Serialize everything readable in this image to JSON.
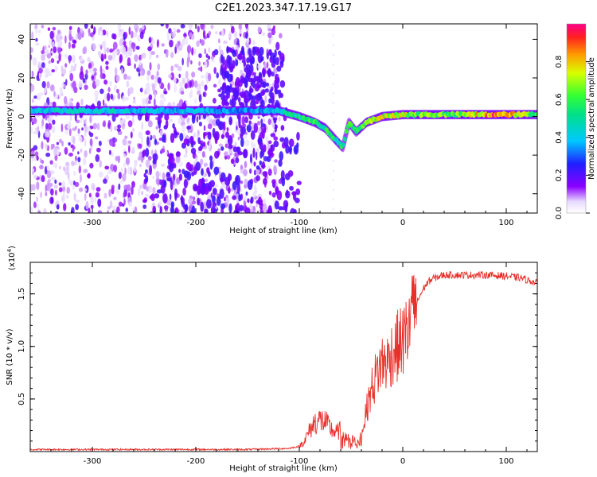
{
  "figure_title": "C2E1.2023.347.17.19.G17",
  "colors": {
    "snr_line": "#e8302a",
    "spectrogram_low": "#d6c6f7",
    "spectrogram_mid": "#5a00e6",
    "spectrogram_high": "#e8302a"
  },
  "chart_data": [
    {
      "type": "heatmap",
      "title": "",
      "xlabel": "Height of straight line (km)",
      "ylabel": "Frequency (Hz)",
      "xlim": [
        -360,
        130
      ],
      "ylim": [
        -50,
        48
      ],
      "x_ticks": [
        -300,
        -200,
        -100,
        0,
        100
      ],
      "y_ticks": [
        -40,
        -20,
        0,
        20,
        40
      ],
      "colorbar": {
        "label": "Normalized spectral amplitude",
        "range": [
          0,
          1
        ],
        "ticks": [
          "0.0",
          "0.2",
          "0.4",
          "0.6",
          "0.8"
        ],
        "colormap": "rainbow"
      },
      "ridge": {
        "description_points_km_hz": [
          [
            -355,
            3
          ],
          [
            -300,
            3
          ],
          [
            -250,
            3
          ],
          [
            -200,
            3
          ],
          [
            -150,
            3
          ],
          [
            -120,
            3
          ],
          [
            -100,
            0
          ],
          [
            -85,
            -3
          ],
          [
            -75,
            -6
          ],
          [
            -65,
            -12
          ],
          [
            -58,
            -16
          ],
          [
            -52,
            -3
          ],
          [
            -45,
            -8
          ],
          [
            -35,
            -3
          ],
          [
            -20,
            0
          ],
          [
            0,
            1
          ],
          [
            40,
            1
          ],
          [
            80,
            1
          ],
          [
            100,
            1
          ],
          [
            130,
            1
          ]
        ],
        "amplitude_points_km": [
          [
            -355,
            0.45
          ],
          [
            -250,
            0.45
          ],
          [
            -150,
            0.35
          ],
          [
            -120,
            0.45
          ],
          [
            -90,
            0.6
          ],
          [
            -60,
            0.55
          ],
          [
            -30,
            0.75
          ],
          [
            0,
            0.75
          ],
          [
            50,
            0.65
          ],
          [
            80,
            0.9
          ],
          [
            100,
            0.95
          ],
          [
            130,
            0.6
          ]
        ]
      },
      "noise_region_km": [
        -360,
        -118
      ]
    },
    {
      "type": "line",
      "title": "",
      "xlabel": "Height of straight line (km)",
      "ylabel": "SNR (10 * v/v)",
      "y_multiplier_label": "(x10",
      "y_multiplier_exp": "4",
      "y_multiplier_close": ")",
      "xlim": [
        -360,
        130
      ],
      "ylim": [
        0,
        1.8
      ],
      "x_ticks": [
        -300,
        -200,
        -100,
        0,
        100
      ],
      "y_ticks": [
        0.5,
        1.0,
        1.5
      ],
      "series": [
        {
          "values_x_km": [
            -360,
            -300,
            -250,
            -200,
            -150,
            -110,
            -100,
            -95,
            -90,
            -85,
            -80,
            -75,
            -70,
            -65,
            -60,
            -55,
            -50,
            -45,
            -40,
            -35,
            -30,
            -25,
            -20,
            -15,
            -10,
            -5,
            0,
            5,
            10,
            15,
            20,
            25,
            30,
            40,
            60,
            80,
            100,
            115,
            130
          ],
          "values_y_x1e4": [
            0.02,
            0.02,
            0.02,
            0.02,
            0.02,
            0.03,
            0.05,
            0.1,
            0.2,
            0.28,
            0.3,
            0.28,
            0.22,
            0.18,
            0.2,
            0.12,
            0.12,
            0.1,
            0.15,
            0.4,
            0.6,
            0.75,
            0.85,
            0.85,
            0.95,
            1.0,
            1.05,
            1.15,
            1.3,
            1.45,
            1.55,
            1.62,
            1.65,
            1.68,
            1.68,
            1.68,
            1.67,
            1.65,
            1.6
          ]
        }
      ]
    }
  ]
}
